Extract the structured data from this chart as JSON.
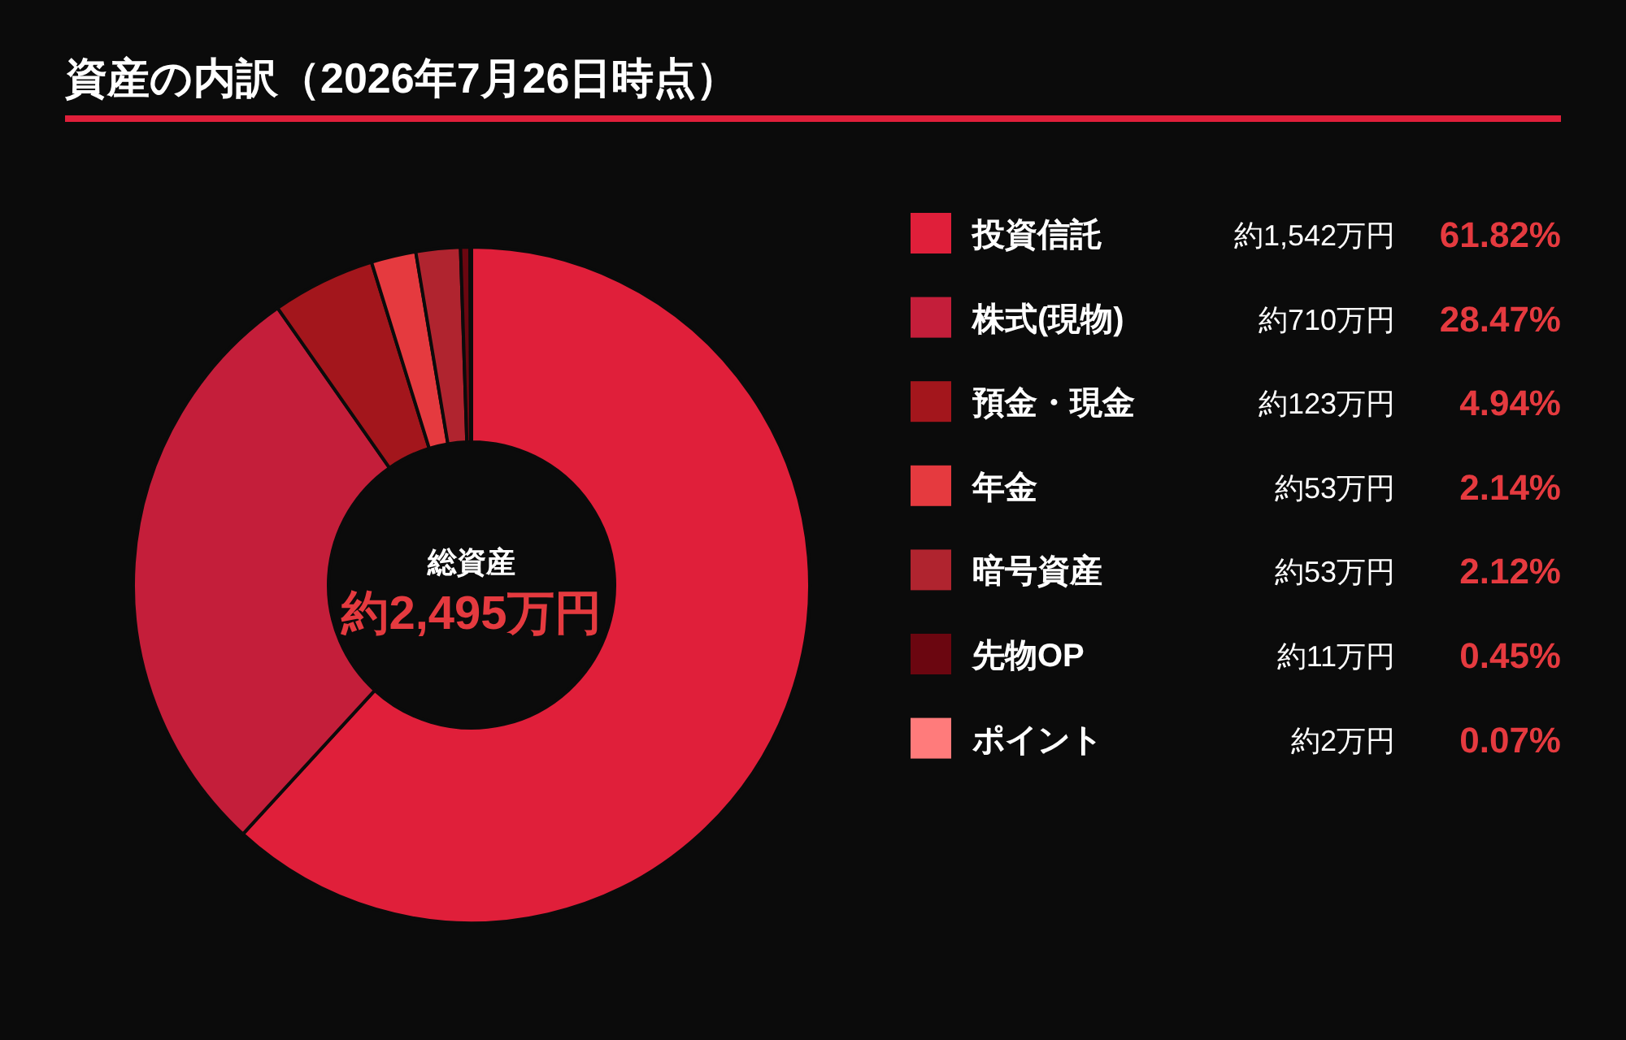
{
  "chart_data": {
    "type": "donut",
    "title": "資産の内訳（2026年7月26日時点）",
    "categories": [
      "投資信託",
      "株式(現物)",
      "預金・現金",
      "年金",
      "暗号資産",
      "先物OP",
      "ポイント"
    ],
    "values": [
      61.82,
      28.47,
      4.94,
      2.14,
      2.12,
      0.45,
      0.07
    ],
    "value_labels": [
      "61.82%",
      "28.47%",
      "4.94%",
      "2.14%",
      "2.12%",
      "0.45%",
      "0.07%"
    ],
    "colors": [
      "#e01f3a",
      "#c41e3a",
      "#a3161c",
      "#e53a3f",
      "#b0242f",
      "#6b0610",
      "#ff7b7b"
    ],
    "legend": "right",
    "annotations": [
      {
        "text": "約1,542万円",
        "x": "投資信託"
      },
      {
        "text": "約710万円",
        "x": "株式(現物)"
      },
      {
        "text": "約123万円",
        "x": "預金・現金"
      },
      {
        "text": "約53万円",
        "x": "年金"
      },
      {
        "text": "約53万円",
        "x": "暗号資産"
      },
      {
        "text": "約11万円",
        "x": "先物OP"
      },
      {
        "text": "約2万円",
        "x": "ポイント"
      },
      "総資産",
      "約2,495万円"
    ]
  }
}
